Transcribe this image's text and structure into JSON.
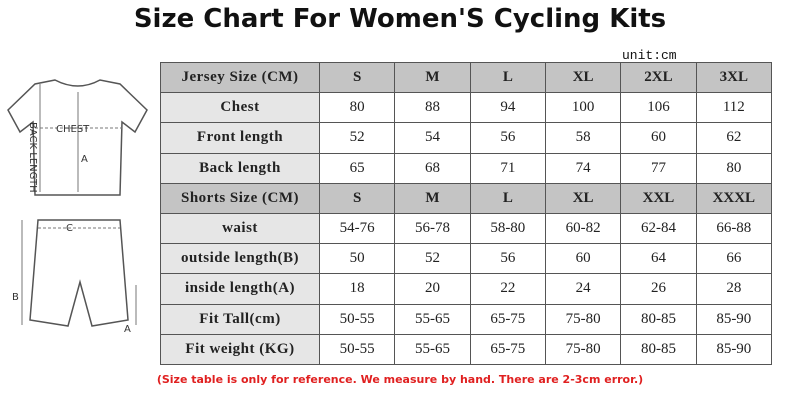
{
  "header": {
    "title": "Size Chart For Women'S Cycling Kits",
    "unit": "unit:cm"
  },
  "illustration": {
    "jersey_labels": [
      "CHEST",
      "BACK LENGTH",
      "A"
    ],
    "shorts_labels": [
      "C",
      "B",
      "A"
    ]
  },
  "table": {
    "sections": [
      {
        "header": [
          "Jersey Size (CM)",
          "S",
          "M",
          "L",
          "XL",
          "2XL",
          "3XL"
        ],
        "rows": [
          [
            "Chest",
            "80",
            "88",
            "94",
            "100",
            "106",
            "112"
          ],
          [
            "Front length",
            "52",
            "54",
            "56",
            "58",
            "60",
            "62"
          ],
          [
            "Back length",
            "65",
            "68",
            "71",
            "74",
            "77",
            "80"
          ]
        ]
      },
      {
        "header": [
          "Shorts Size (CM)",
          "S",
          "M",
          "L",
          "XL",
          "XXL",
          "XXXL"
        ],
        "rows": [
          [
            "waist",
            "54-76",
            "56-78",
            "58-80",
            "60-82",
            "62-84",
            "66-88"
          ],
          [
            "outside length(B)",
            "50",
            "52",
            "56",
            "60",
            "64",
            "66"
          ],
          [
            "inside length(A)",
            "18",
            "20",
            "22",
            "24",
            "26",
            "28"
          ],
          [
            "Fit Tall(cm)",
            "50-55",
            "55-65",
            "65-75",
            "75-80",
            "80-85",
            "85-90"
          ],
          [
            "Fit weight (KG)",
            "50-55",
            "55-65",
            "65-75",
            "75-80",
            "80-85",
            "85-90"
          ]
        ]
      }
    ]
  },
  "footnote": "(Size table is only for reference. We measure by hand. There are 2-3cm error.)"
}
